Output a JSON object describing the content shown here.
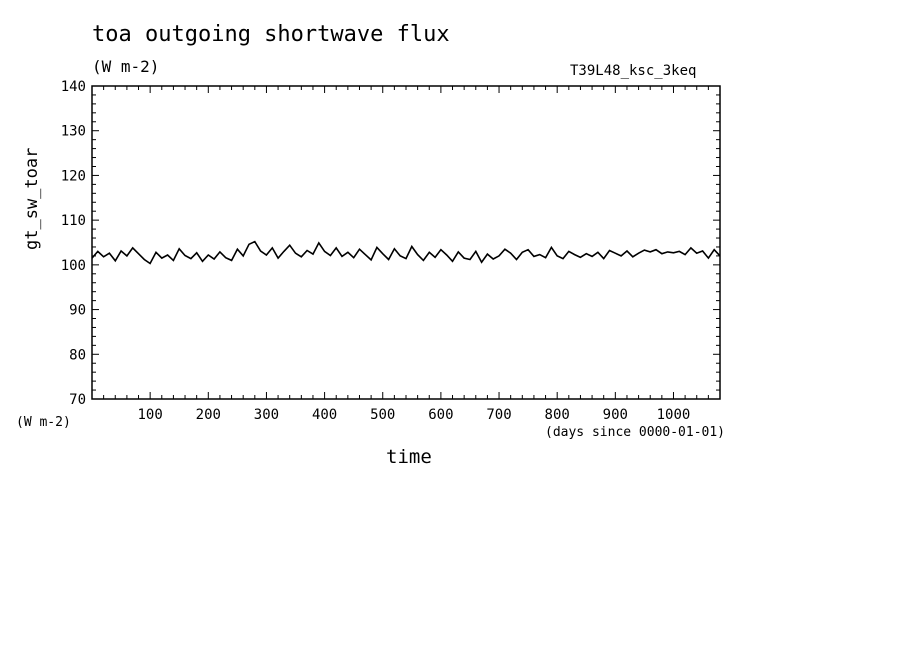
{
  "chart_data": {
    "type": "line",
    "title": "toa outgoing shortwave flux",
    "units": "(W m-2)",
    "run_id": "T39L48_ksc_3keq",
    "xlabel": "time",
    "xunit": "(days since 0000-01-01)",
    "ylabel": "gt_sw_toar",
    "yunit": "(W m-2)",
    "xlim": [
      0,
      1080
    ],
    "ylim": [
      70,
      140
    ],
    "xticks": [
      100,
      200,
      300,
      400,
      500,
      600,
      700,
      800,
      900,
      1000
    ],
    "yticks": [
      70,
      80,
      90,
      100,
      110,
      120,
      130,
      140
    ],
    "grid": false,
    "series": [
      {
        "x": [
          0,
          10,
          20,
          30,
          40,
          50,
          60,
          70,
          80,
          90,
          100,
          110,
          120,
          130,
          140,
          150,
          160,
          170,
          180,
          190,
          200,
          210,
          220,
          230,
          240,
          250,
          260,
          270,
          280,
          290,
          300,
          310,
          320,
          330,
          340,
          350,
          360,
          370,
          380,
          390,
          400,
          410,
          420,
          430,
          440,
          450,
          460,
          470,
          480,
          490,
          500,
          510,
          520,
          530,
          540,
          550,
          560,
          570,
          580,
          590,
          600,
          610,
          620,
          630,
          640,
          650,
          660,
          670,
          680,
          690,
          700,
          710,
          720,
          730,
          740,
          750,
          760,
          770,
          780,
          790,
          800,
          810,
          820,
          830,
          840,
          850,
          860,
          870,
          880,
          890,
          900,
          910,
          920,
          930,
          940,
          950,
          960,
          970,
          980,
          990,
          1000,
          1010,
          1020,
          1030,
          1040,
          1050,
          1060,
          1070,
          1080
        ],
        "values": [
          101.5,
          103.0,
          101.8,
          102.6,
          100.9,
          103.1,
          102.0,
          103.8,
          102.5,
          101.2,
          100.3,
          102.8,
          101.5,
          102.2,
          101.0,
          103.6,
          102.1,
          101.4,
          102.7,
          100.8,
          102.2,
          101.3,
          102.9,
          101.6,
          101.0,
          103.5,
          102.0,
          104.6,
          105.2,
          103.1,
          102.2,
          103.8,
          101.5,
          103.0,
          104.4,
          102.6,
          101.8,
          103.2,
          102.4,
          104.9,
          103.0,
          102.1,
          103.8,
          101.9,
          102.8,
          101.6,
          103.5,
          102.3,
          101.1,
          103.9,
          102.5,
          101.2,
          103.6,
          102.0,
          101.4,
          104.1,
          102.3,
          101.0,
          102.8,
          101.7,
          103.4,
          102.2,
          100.8,
          102.9,
          101.5,
          101.2,
          103.0,
          100.6,
          102.4,
          101.3,
          102.0,
          103.5,
          102.6,
          101.2,
          102.8,
          103.4,
          101.9,
          102.3,
          101.6,
          103.9,
          102.0,
          101.4,
          103.0,
          102.3,
          101.7,
          102.5,
          101.9,
          102.8,
          101.4,
          103.2,
          102.6,
          102.0,
          103.1,
          101.8,
          102.6,
          103.3,
          102.9,
          103.4,
          102.5,
          102.9,
          102.7,
          103.0,
          102.3,
          103.8,
          102.6,
          103.1,
          101.5,
          103.4,
          102.0
        ]
      }
    ]
  }
}
